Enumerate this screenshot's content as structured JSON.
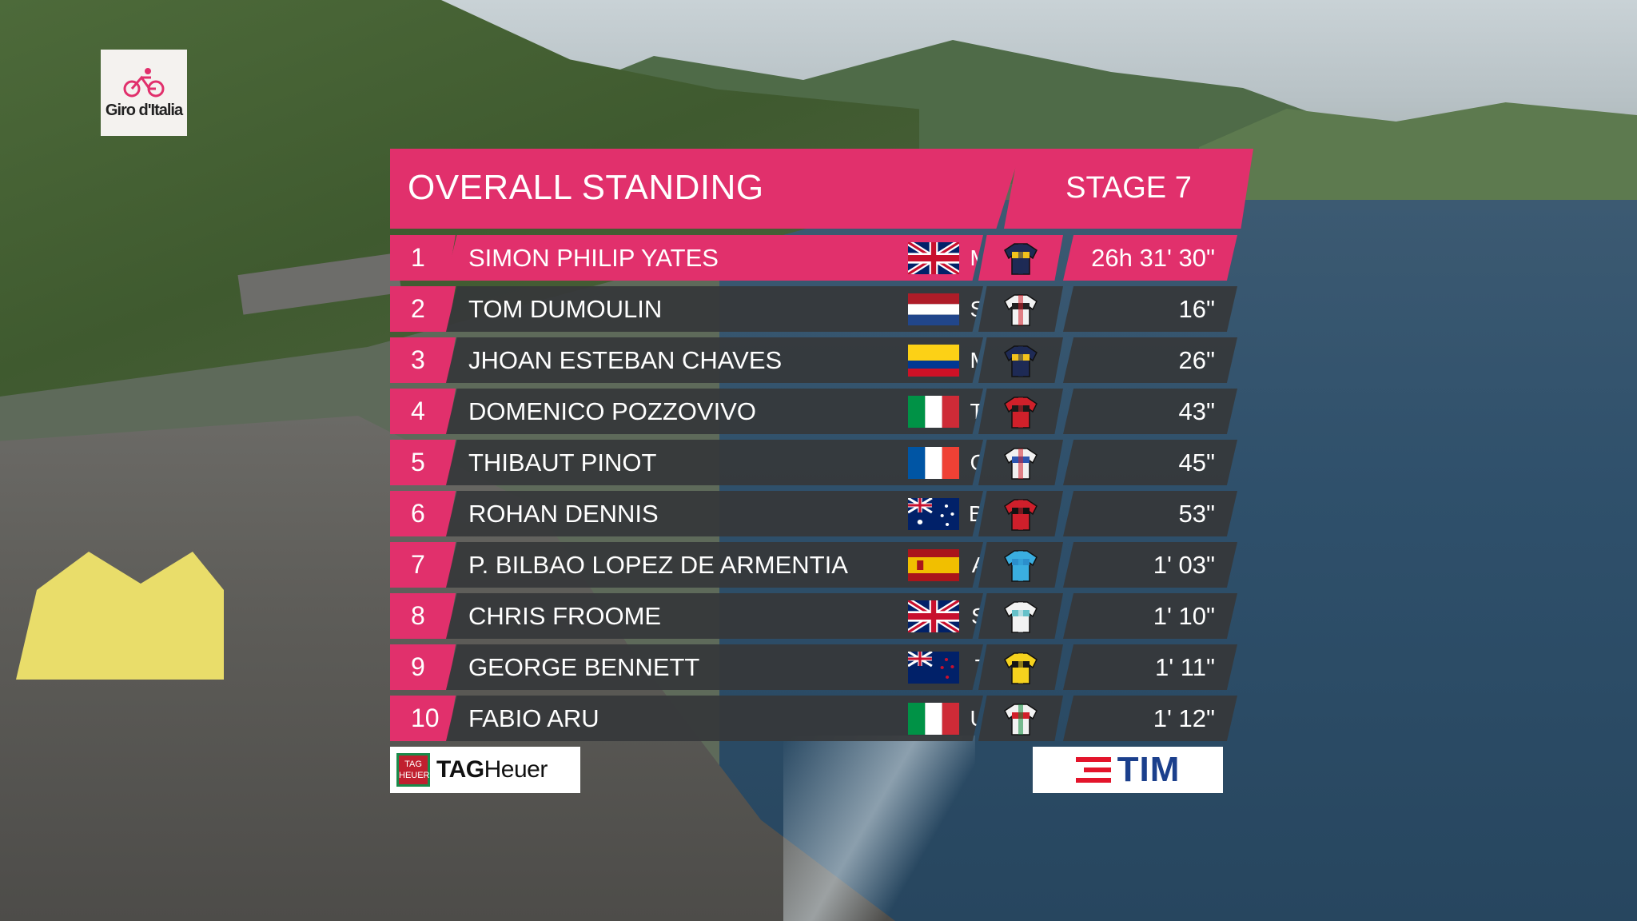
{
  "logo": {
    "text": "Giro d'Italia"
  },
  "header": {
    "title": "OVERALL STANDING",
    "stage": "STAGE 7"
  },
  "colors": {
    "accent": "#e1306c",
    "row_bg": "#36383a",
    "tim_red": "#e3142b",
    "tim_blue": "#1b3f8c"
  },
  "standings": [
    {
      "pos": "1",
      "name": "SIMON PHILIP YATES",
      "flag": "gb",
      "team": "MTS",
      "jersey": "navy-yellow",
      "time": "26h 31' 30\""
    },
    {
      "pos": "2",
      "name": "TOM DUMOULIN",
      "flag": "nl",
      "team": "SUN",
      "jersey": "white-black-red",
      "time": "16\""
    },
    {
      "pos": "3",
      "name": "JHOAN ESTEBAN CHAVES",
      "flag": "co",
      "team": "MTS",
      "jersey": "navy-yellow",
      "time": "26\""
    },
    {
      "pos": "4",
      "name": "DOMENICO POZZOVIVO",
      "flag": "it",
      "team": "TBM",
      "jersey": "red-black",
      "time": "43\""
    },
    {
      "pos": "5",
      "name": "THIBAUT PINOT",
      "flag": "fr",
      "team": "GFC",
      "jersey": "white-blue-red",
      "time": "45\""
    },
    {
      "pos": "6",
      "name": "ROHAN DENNIS",
      "flag": "au",
      "team": "BMC",
      "jersey": "red-black-stripes",
      "time": "53\""
    },
    {
      "pos": "7",
      "name": "P. BILBAO LOPEZ DE ARMENTIA",
      "flag": "es",
      "team": "AST",
      "jersey": "sky-blue",
      "time": "1' 03\""
    },
    {
      "pos": "8",
      "name": "CHRIS FROOME",
      "flag": "gb",
      "team": "SKY",
      "jersey": "white-teal",
      "time": "1' 10\""
    },
    {
      "pos": "9",
      "name": "GEORGE BENNETT",
      "flag": "nz",
      "team": "TLJ",
      "jersey": "yellow-black",
      "time": "1' 11\""
    },
    {
      "pos": "10",
      "name": "FABIO ARU",
      "flag": "it",
      "team": "UAD",
      "jersey": "white-red-green",
      "time": "1' 12\""
    }
  ],
  "sponsors": {
    "left": {
      "badge": "TAG HEUER",
      "bold": "TAG",
      "rest": "Heuer"
    },
    "right": "TIM"
  }
}
